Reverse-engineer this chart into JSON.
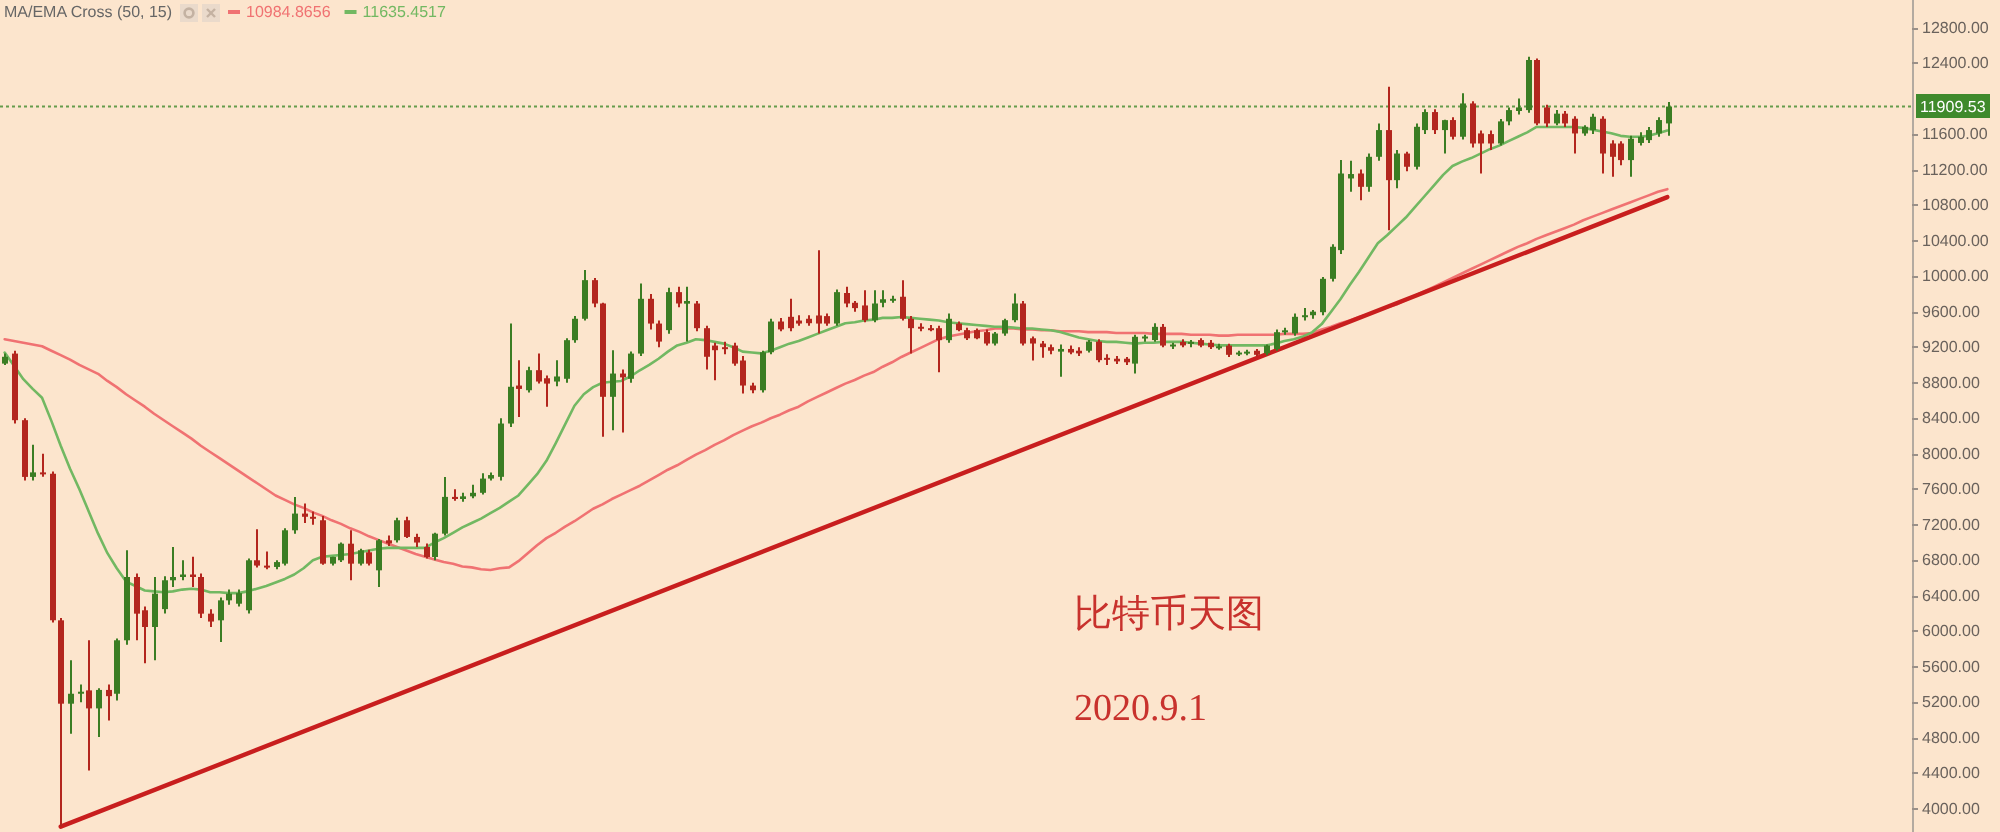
{
  "chart_data": {
    "type": "candlestick",
    "legend_title": "MA/EMA Cross (50, 15)",
    "legend": "top left",
    "tick_labels": "y",
    "categories": [
      null,
      null,
      null,
      null,
      null,
      null,
      null,
      null,
      null,
      null,
      null,
      null,
      null,
      null,
      null,
      null,
      null,
      null,
      null,
      null,
      null,
      null,
      null,
      null,
      null,
      null,
      null,
      null,
      null,
      null,
      null,
      null,
      null,
      null,
      null,
      null,
      null,
      null,
      null,
      null,
      null,
      null,
      null,
      null,
      null,
      null,
      null,
      null,
      null,
      null,
      null,
      null,
      null,
      null,
      null,
      null,
      null,
      null,
      null,
      null,
      null,
      null,
      null,
      null,
      null,
      null,
      null,
      null,
      null,
      null,
      null,
      null,
      null,
      null,
      null,
      null,
      null,
      null,
      null,
      null,
      null,
      null,
      null,
      null,
      null,
      null,
      null,
      null,
      null,
      null,
      null,
      null,
      null,
      null,
      null,
      null,
      null,
      null,
      null,
      null,
      null,
      null,
      null,
      null,
      null,
      null,
      null,
      null,
      null,
      null,
      null,
      null,
      null,
      null,
      null,
      null,
      null,
      null,
      null,
      null,
      null,
      null,
      null,
      null,
      null,
      null,
      null,
      null,
      null,
      null,
      null,
      null,
      null,
      null,
      null,
      null,
      null,
      null,
      null,
      null,
      null,
      null,
      null,
      null,
      null,
      null,
      null,
      null,
      null,
      null,
      null,
      null,
      null,
      null,
      null,
      null,
      null,
      null,
      null,
      null,
      null,
      null,
      null,
      null,
      null,
      null,
      null,
      null,
      null,
      null,
      null,
      null,
      null,
      null,
      null,
      null,
      null,
      null,
      null
    ],
    "ohlc": [
      [
        9015,
        9130,
        9000,
        9092
      ],
      [
        9128,
        9160,
        8340,
        8378
      ],
      [
        8378,
        8400,
        7700,
        7739
      ],
      [
        7739,
        8100,
        7700,
        7790
      ],
      [
        7790,
        8000,
        7740,
        7776
      ],
      [
        7776,
        7800,
        6100,
        6124
      ],
      [
        6124,
        6150,
        3800,
        5185
      ],
      [
        5185,
        5673,
        4846,
        5297
      ],
      [
        5297,
        5400,
        5200,
        5320
      ],
      [
        5335,
        5900,
        4434,
        5132
      ],
      [
        5132,
        5360,
        4810,
        5340
      ],
      [
        5340,
        5400,
        4997,
        5270
      ],
      [
        5297,
        5920,
        5220,
        5899
      ],
      [
        5899,
        6913,
        5850,
        6612
      ],
      [
        6612,
        6650,
        5899,
        6199
      ],
      [
        6237,
        6280,
        5640,
        6049
      ],
      [
        6049,
        6612,
        5673,
        6424
      ],
      [
        6250,
        6620,
        6200,
        6575
      ],
      [
        6575,
        6950,
        6500,
        6612
      ],
      [
        6612,
        6800,
        6575,
        6640
      ],
      [
        6640,
        6840,
        6500,
        6612
      ],
      [
        6612,
        6650,
        6150,
        6199
      ],
      [
        6199,
        6250,
        6050,
        6110
      ],
      [
        6124,
        6380,
        5880,
        6349
      ],
      [
        6349,
        6470,
        6300,
        6424
      ],
      [
        6311,
        6470,
        6280,
        6430
      ],
      [
        6237,
        6820,
        6200,
        6800
      ],
      [
        6800,
        7150,
        6720,
        6740
      ],
      [
        6740,
        6900,
        6700,
        6725
      ],
      [
        6725,
        6800,
        6700,
        6780
      ],
      [
        6762,
        7160,
        6740,
        7138
      ],
      [
        7138,
        7514,
        7100,
        7326
      ],
      [
        7326,
        7440,
        7220,
        7290
      ],
      [
        7290,
        7350,
        7200,
        7280
      ],
      [
        7251,
        7300,
        6750,
        6762
      ],
      [
        6762,
        6840,
        6740,
        6837
      ],
      [
        6800,
        7000,
        6780,
        6987
      ],
      [
        6987,
        7138,
        6575,
        6762
      ],
      [
        6762,
        6930,
        6740,
        6913
      ],
      [
        6890,
        6920,
        6740,
        6762
      ],
      [
        6687,
        7040,
        6500,
        7025
      ],
      [
        7025,
        7080,
        6960,
        6990
      ],
      [
        7025,
        7280,
        7000,
        7251
      ],
      [
        7251,
        7290,
        7050,
        7063
      ],
      [
        7063,
        7100,
        6950,
        7000
      ],
      [
        6950,
        6990,
        6820,
        6837
      ],
      [
        6837,
        7110,
        6800,
        7100
      ],
      [
        7100,
        7739,
        7080,
        7514
      ],
      [
        7514,
        7600,
        7470,
        7490
      ],
      [
        7490,
        7560,
        7460,
        7520
      ],
      [
        7520,
        7650,
        7500,
        7560
      ],
      [
        7560,
        7780,
        7540,
        7720
      ],
      [
        7720,
        7790,
        7700,
        7760
      ],
      [
        7740,
        8400,
        7700,
        8340
      ],
      [
        8340,
        9466,
        8300,
        8754
      ],
      [
        8768,
        9054,
        8415,
        8730
      ],
      [
        8715,
        8980,
        8690,
        8941
      ],
      [
        8941,
        9128,
        8790,
        8813
      ],
      [
        8850,
        8880,
        8528,
        8790
      ],
      [
        8813,
        9054,
        8760,
        8870
      ],
      [
        8844,
        9300,
        8800,
        9279
      ],
      [
        9279,
        9550,
        9250,
        9520
      ],
      [
        9520,
        10068,
        9500,
        9955
      ],
      [
        9955,
        9980,
        9650,
        9692
      ],
      [
        9692,
        9700,
        8190,
        8641
      ],
      [
        8641,
        9166,
        8265,
        8903
      ],
      [
        8903,
        8950,
        8240,
        8860
      ],
      [
        8844,
        9150,
        8800,
        9128
      ],
      [
        9128,
        9917,
        9100,
        9745
      ],
      [
        9745,
        9800,
        9400,
        9466
      ],
      [
        9466,
        9500,
        9200,
        9263
      ],
      [
        9392,
        9870,
        9350,
        9820
      ],
      [
        9820,
        9880,
        9650,
        9692
      ],
      [
        9690,
        9880,
        9263,
        9720
      ],
      [
        9692,
        9720,
        9380,
        9414
      ],
      [
        9414,
        9440,
        8950,
        9092
      ],
      [
        9218,
        9250,
        8828,
        9166
      ],
      [
        9200,
        9260,
        9120,
        9180
      ],
      [
        9218,
        9250,
        8990,
        9015
      ],
      [
        9050,
        9100,
        8678,
        8768
      ],
      [
        8768,
        8800,
        8680,
        8715
      ],
      [
        8715,
        9160,
        8690,
        9143
      ],
      [
        9143,
        9520,
        9120,
        9489
      ],
      [
        9489,
        9530,
        9380,
        9400
      ],
      [
        9542,
        9745,
        9380,
        9414
      ],
      [
        9500,
        9560,
        9440,
        9466
      ],
      [
        9520,
        9560,
        9440,
        9470
      ],
      [
        9557,
        10293,
        9354,
        9466
      ],
      [
        9550,
        9580,
        9440,
        9466
      ],
      [
        9466,
        9850,
        9440,
        9820
      ],
      [
        9810,
        9880,
        9650,
        9692
      ],
      [
        9700,
        9720,
        9600,
        9640
      ],
      [
        9670,
        9840,
        9480,
        9504
      ],
      [
        9504,
        9840,
        9480,
        9692
      ],
      [
        9700,
        9840,
        9650,
        9740
      ],
      [
        9740,
        9780,
        9700,
        9745
      ],
      [
        9768,
        9955,
        9500,
        9520
      ],
      [
        9520,
        9550,
        9128,
        9414
      ],
      [
        9430,
        9470,
        9380,
        9414
      ],
      [
        9414,
        9450,
        9380,
        9400
      ],
      [
        9414,
        9440,
        8918,
        9279
      ],
      [
        9279,
        9580,
        9250,
        9520
      ],
      [
        9466,
        9490,
        9380,
        9392
      ],
      [
        9392,
        9420,
        9280,
        9300
      ],
      [
        9392,
        9410,
        9290,
        9300
      ],
      [
        9370,
        9400,
        9220,
        9241
      ],
      [
        9241,
        9370,
        9220,
        9354
      ],
      [
        9354,
        9520,
        9330,
        9504
      ],
      [
        9504,
        9805,
        9480,
        9692
      ],
      [
        9692,
        9720,
        9220,
        9241
      ],
      [
        9300,
        9320,
        9050,
        9241
      ],
      [
        9241,
        9270,
        9080,
        9200
      ],
      [
        9200,
        9230,
        9120,
        9160
      ],
      [
        9150,
        9230,
        8867,
        9180
      ],
      [
        9180,
        9220,
        9120,
        9140
      ],
      [
        9160,
        9200,
        9100,
        9130
      ],
      [
        9160,
        9280,
        9140,
        9263
      ],
      [
        9263,
        9290,
        9030,
        9054
      ],
      [
        9080,
        9120,
        9000,
        9060
      ],
      [
        9070,
        9100,
        9010,
        9040
      ],
      [
        9070,
        9090,
        9000,
        9030
      ],
      [
        9015,
        9340,
        8903,
        9317
      ],
      [
        9300,
        9340,
        9260,
        9320
      ],
      [
        9280,
        9470,
        9260,
        9429
      ],
      [
        9429,
        9460,
        9200,
        9218
      ],
      [
        9220,
        9250,
        9180,
        9230
      ],
      [
        9260,
        9290,
        9200,
        9220
      ],
      [
        9240,
        9280,
        9200,
        9260
      ],
      [
        9280,
        9300,
        9200,
        9218
      ],
      [
        9250,
        9280,
        9180,
        9200
      ],
      [
        9200,
        9240,
        9170,
        9210
      ],
      [
        9218,
        9240,
        9090,
        9114
      ],
      [
        9130,
        9160,
        9100,
        9140
      ],
      [
        9130,
        9170,
        9110,
        9150
      ],
      [
        9160,
        9180,
        9100,
        9114
      ],
      [
        9130,
        9230,
        9110,
        9218
      ],
      [
        9180,
        9400,
        9160,
        9369
      ],
      [
        9369,
        9420,
        9340,
        9390
      ],
      [
        9354,
        9580,
        9330,
        9542
      ],
      [
        9542,
        9640,
        9500,
        9560
      ],
      [
        9560,
        9620,
        9520,
        9600
      ],
      [
        9594,
        9990,
        9560,
        9970
      ],
      [
        9970,
        10360,
        9940,
        10331
      ],
      [
        10293,
        11307,
        10250,
        11156
      ],
      [
        11100,
        11300,
        10950,
        11150
      ],
      [
        11156,
        11200,
        10856,
        11006
      ],
      [
        11006,
        11380,
        10950,
        11344
      ],
      [
        11344,
        11720,
        11300,
        11645
      ],
      [
        11645,
        12134,
        10518,
        11081
      ],
      [
        11081,
        11420,
        10990,
        11381
      ],
      [
        11381,
        11400,
        11180,
        11232
      ],
      [
        11232,
        11720,
        11200,
        11682
      ],
      [
        11645,
        11880,
        11600,
        11848
      ],
      [
        11848,
        11880,
        11600,
        11645
      ],
      [
        11645,
        11760,
        11381,
        11757
      ],
      [
        11758,
        11790,
        11540,
        11570
      ],
      [
        11570,
        12059,
        11540,
        11945
      ],
      [
        11945,
        11970,
        11450,
        11494
      ],
      [
        11607,
        11640,
        11156,
        11494
      ],
      [
        11600,
        11640,
        11420,
        11494
      ],
      [
        11494,
        11770,
        11470,
        11743
      ],
      [
        11743,
        11900,
        11700,
        11870
      ],
      [
        11860,
        12000,
        11820,
        11900
      ],
      [
        11870,
        12472,
        11840,
        12434
      ],
      [
        12434,
        12450,
        11700,
        11720
      ],
      [
        11900,
        11930,
        11680,
        11720
      ],
      [
        11720,
        11870,
        11700,
        11830
      ],
      [
        11830,
        11860,
        11680,
        11720
      ],
      [
        11773,
        11800,
        11381,
        11607
      ],
      [
        11607,
        11700,
        11580,
        11682
      ],
      [
        11645,
        11830,
        11600,
        11795
      ],
      [
        11773,
        11800,
        11156,
        11381
      ],
      [
        11494,
        11530,
        11119,
        11344
      ],
      [
        11494,
        11520,
        11250,
        11307
      ],
      [
        11307,
        11580,
        11119,
        11548
      ],
      [
        11500,
        11620,
        11470,
        11570
      ],
      [
        11532,
        11680,
        11500,
        11645
      ],
      [
        11607,
        11790,
        11570,
        11758
      ],
      [
        11720,
        11960,
        11580,
        11910
      ]
    ],
    "series": [
      {
        "type": "line",
        "name": "10984.8656",
        "color": "#f07272",
        "values": [
          9290,
          9270,
          9250,
          9230,
          9210,
          9160,
          9110,
          9060,
          9000,
          8950,
          8900,
          8820,
          8750,
          8670,
          8600,
          8530,
          8450,
          8380,
          8310,
          8240,
          8170,
          8090,
          8020,
          7950,
          7880,
          7810,
          7740,
          7670,
          7600,
          7530,
          7480,
          7430,
          7390,
          7340,
          7300,
          7250,
          7210,
          7160,
          7120,
          7070,
          7030,
          6990,
          6950,
          6910,
          6870,
          6840,
          6810,
          6780,
          6760,
          6730,
          6720,
          6700,
          6690,
          6710,
          6720,
          6790,
          6880,
          6970,
          7050,
          7110,
          7180,
          7240,
          7310,
          7380,
          7430,
          7490,
          7540,
          7590,
          7640,
          7700,
          7760,
          7820,
          7870,
          7930,
          7990,
          8040,
          8100,
          8150,
          8210,
          8260,
          8310,
          8350,
          8400,
          8440,
          8490,
          8530,
          8590,
          8640,
          8690,
          8740,
          8790,
          8830,
          8880,
          8920,
          8980,
          9030,
          9090,
          9140,
          9190,
          9240,
          9290,
          9320,
          9340,
          9360,
          9380,
          9390,
          9410,
          9410,
          9410,
          9400,
          9400,
          9390,
          9390,
          9380,
          9380,
          9380,
          9370,
          9370,
          9370,
          9360,
          9360,
          9360,
          9360,
          9350,
          9350,
          9350,
          9350,
          9340,
          9340,
          9340,
          9330,
          9330,
          9340,
          9340,
          9340,
          9340,
          9340,
          9350,
          9350,
          9350,
          9360,
          9400,
          9430,
          9470,
          9500,
          9540,
          9570,
          9610,
          9650,
          9680,
          9730,
          9780,
          9830,
          9880,
          9930,
          9980,
          10030,
          10080,
          10130,
          10180,
          10230,
          10280,
          10330,
          10370,
          10420,
          10460,
          10500,
          10540,
          10580,
          10630,
          10670,
          10710,
          10750,
          10790,
          10830,
          10870,
          10910,
          10950,
          10980
        ]
      },
      {
        "type": "line",
        "name": "11635.4517",
        "color": "#72b862",
        "values": [
          9140,
          8990,
          8840,
          8730,
          8630,
          8370,
          8090,
          7830,
          7600,
          7350,
          7100,
          6880,
          6710,
          6560,
          6510,
          6460,
          6450,
          6440,
          6450,
          6470,
          6480,
          6470,
          6440,
          6440,
          6430,
          6430,
          6450,
          6480,
          6510,
          6550,
          6590,
          6640,
          6710,
          6800,
          6840,
          6850,
          6860,
          6870,
          6890,
          6910,
          6930,
          6940,
          6940,
          6940,
          6940,
          6940,
          7000,
          7050,
          7110,
          7170,
          7220,
          7270,
          7330,
          7390,
          7460,
          7530,
          7650,
          7770,
          7920,
          8120,
          8330,
          8540,
          8670,
          8750,
          8800,
          8810,
          8820,
          8870,
          8940,
          9000,
          9070,
          9150,
          9220,
          9250,
          9290,
          9280,
          9260,
          9240,
          9200,
          9150,
          9140,
          9130,
          9160,
          9200,
          9240,
          9270,
          9310,
          9350,
          9390,
          9430,
          9470,
          9480,
          9500,
          9510,
          9530,
          9530,
          9540,
          9530,
          9520,
          9510,
          9500,
          9480,
          9470,
          9460,
          9450,
          9440,
          9430,
          9430,
          9420,
          9410,
          9410,
          9400,
          9390,
          9370,
          9340,
          9310,
          9290,
          9270,
          9260,
          9260,
          9250,
          9240,
          9250,
          9250,
          9260,
          9260,
          9260,
          9250,
          9240,
          9230,
          9220,
          9220,
          9220,
          9220,
          9220,
          9220,
          9240,
          9270,
          9290,
          9320,
          9370,
          9460,
          9600,
          9740,
          9900,
          10050,
          10210,
          10370,
          10460,
          10560,
          10660,
          10780,
          10900,
          11020,
          11140,
          11240,
          11290,
          11330,
          11380,
          11430,
          11470,
          11520,
          11570,
          11620,
          11680,
          11680,
          11680,
          11680,
          11680,
          11670,
          11650,
          11630,
          11610,
          11580,
          11570,
          11570,
          11580,
          11610,
          11640
        ]
      },
      {
        "type": "line",
        "color": "#c81e1e",
        "values": [
          null,
          null,
          null,
          null,
          null,
          null,
          3800,
          null,
          null,
          null,
          null,
          null,
          null,
          null,
          null,
          null,
          null,
          null,
          null,
          null,
          null,
          null,
          null,
          null,
          null,
          null,
          null,
          null,
          null,
          null,
          null,
          null,
          null,
          null,
          null,
          null,
          null,
          null,
          null,
          null,
          null,
          null,
          null,
          null,
          null,
          null,
          null,
          null,
          null,
          null,
          null,
          null,
          null,
          null,
          null,
          null,
          null,
          null,
          null,
          null,
          null,
          null,
          null,
          null,
          null,
          null,
          null,
          null,
          null,
          null,
          null,
          null,
          null,
          null,
          null,
          null,
          null,
          null,
          null,
          null,
          null,
          null,
          null,
          null,
          null,
          null,
          null,
          null,
          null,
          null,
          null,
          null,
          null,
          null,
          null,
          null,
          null,
          null,
          null,
          null,
          null,
          null,
          null,
          null,
          null,
          null,
          null,
          null,
          null,
          null,
          null,
          null,
          null,
          null,
          null,
          null,
          null,
          null,
          null,
          null,
          null,
          null,
          null,
          null,
          null,
          null,
          null,
          null,
          null,
          null,
          null,
          null,
          null,
          null,
          null,
          null,
          null,
          null,
          null,
          null,
          null,
          null,
          null,
          null,
          null,
          null,
          null,
          null,
          null,
          null,
          null,
          null,
          null,
          null,
          null,
          null,
          null,
          null,
          null,
          null,
          null,
          null,
          null,
          null,
          null,
          null,
          null,
          null,
          null,
          null,
          null,
          null,
          null,
          null,
          null,
          null,
          null,
          null,
          10890
        ]
      }
    ],
    "ylim": [
      3740,
      13110
    ],
    "yticks": [
      {
        "value": 4000,
        "label": "4000.00"
      },
      {
        "value": 4400,
        "label": "4400.00"
      },
      {
        "value": 4800,
        "label": "4800.00"
      },
      {
        "value": 5200,
        "label": "5200.00"
      },
      {
        "value": 5600,
        "label": "5600.00"
      },
      {
        "value": 6000,
        "label": "6000.00"
      },
      {
        "value": 6400,
        "label": "6400.00"
      },
      {
        "value": 6800,
        "label": "6800.00"
      },
      {
        "value": 7200,
        "label": "7200.00"
      },
      {
        "value": 7600,
        "label": "7600.00"
      },
      {
        "value": 8000,
        "label": "8000.00"
      },
      {
        "value": 8400,
        "label": "8400.00"
      },
      {
        "value": 8800,
        "label": "8800.00"
      },
      {
        "value": 9200,
        "label": "9200.00"
      },
      {
        "value": 9600,
        "label": "9600.00"
      },
      {
        "value": 10000,
        "label": "10000.00"
      },
      {
        "value": 10400,
        "label": "10400.00"
      },
      {
        "value": 10800,
        "label": "10800.00"
      },
      {
        "value": 11200,
        "label": "11200.00"
      },
      {
        "value": 11600,
        "label": "11600.00"
      },
      {
        "value": 12400,
        "label": "12400.00"
      },
      {
        "value": 12800,
        "label": "12800.00"
      }
    ],
    "ref_lines": [
      {
        "axis": "y",
        "value": 11909.53,
        "label": "11909.53",
        "color": "#3f8a2c",
        "line_style": "dotted"
      }
    ],
    "annotations": [
      "比特币天图",
      "2020.9.1"
    ]
  }
}
